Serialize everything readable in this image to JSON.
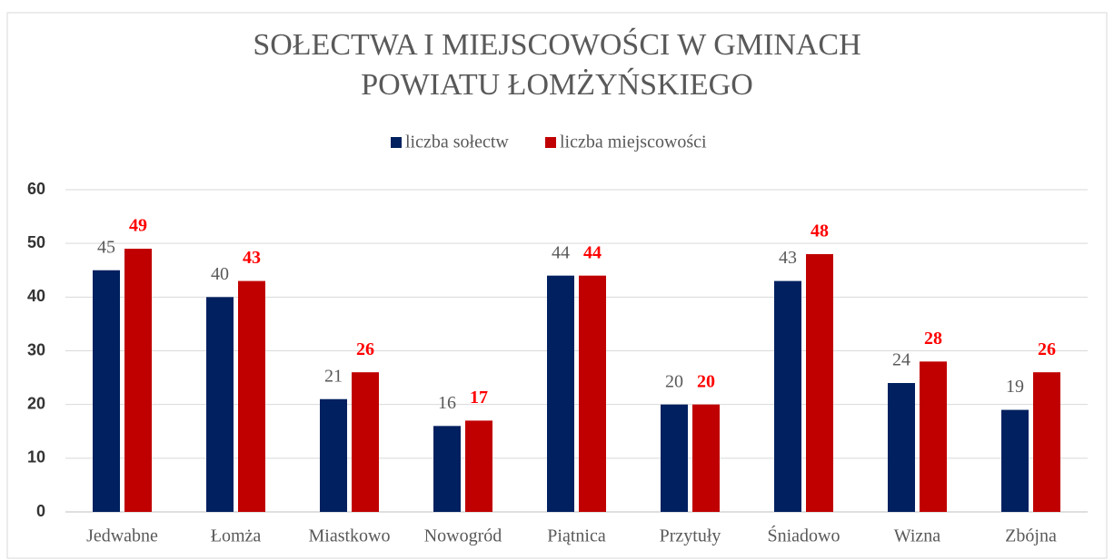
{
  "chart_data": {
    "type": "bar",
    "title": "SOŁECTWA I MIEJSCOWOŚCI W GMINACH POWIATU ŁOMŻYŃSKIEGO",
    "categories": [
      "Jedwabne",
      "Łomża",
      "Miastkowo",
      "Nowogród",
      "Piątnica",
      "Przytuły",
      "Śniadowo",
      "Wizna",
      "Zbójna"
    ],
    "series": [
      {
        "name": "liczba sołectw",
        "color": "#002060",
        "label_color": "#595959",
        "values": [
          45,
          40,
          21,
          16,
          44,
          20,
          43,
          24,
          19
        ]
      },
      {
        "name": "liczba miejscowości",
        "color": "#c00000",
        "label_color": "#ff0000",
        "values": [
          49,
          43,
          26,
          17,
          44,
          20,
          48,
          28,
          26
        ]
      }
    ],
    "ylim": [
      0,
      60
    ],
    "yticks": [
      0,
      10,
      20,
      30,
      40,
      50,
      60
    ],
    "grid": true,
    "legend": "top"
  }
}
